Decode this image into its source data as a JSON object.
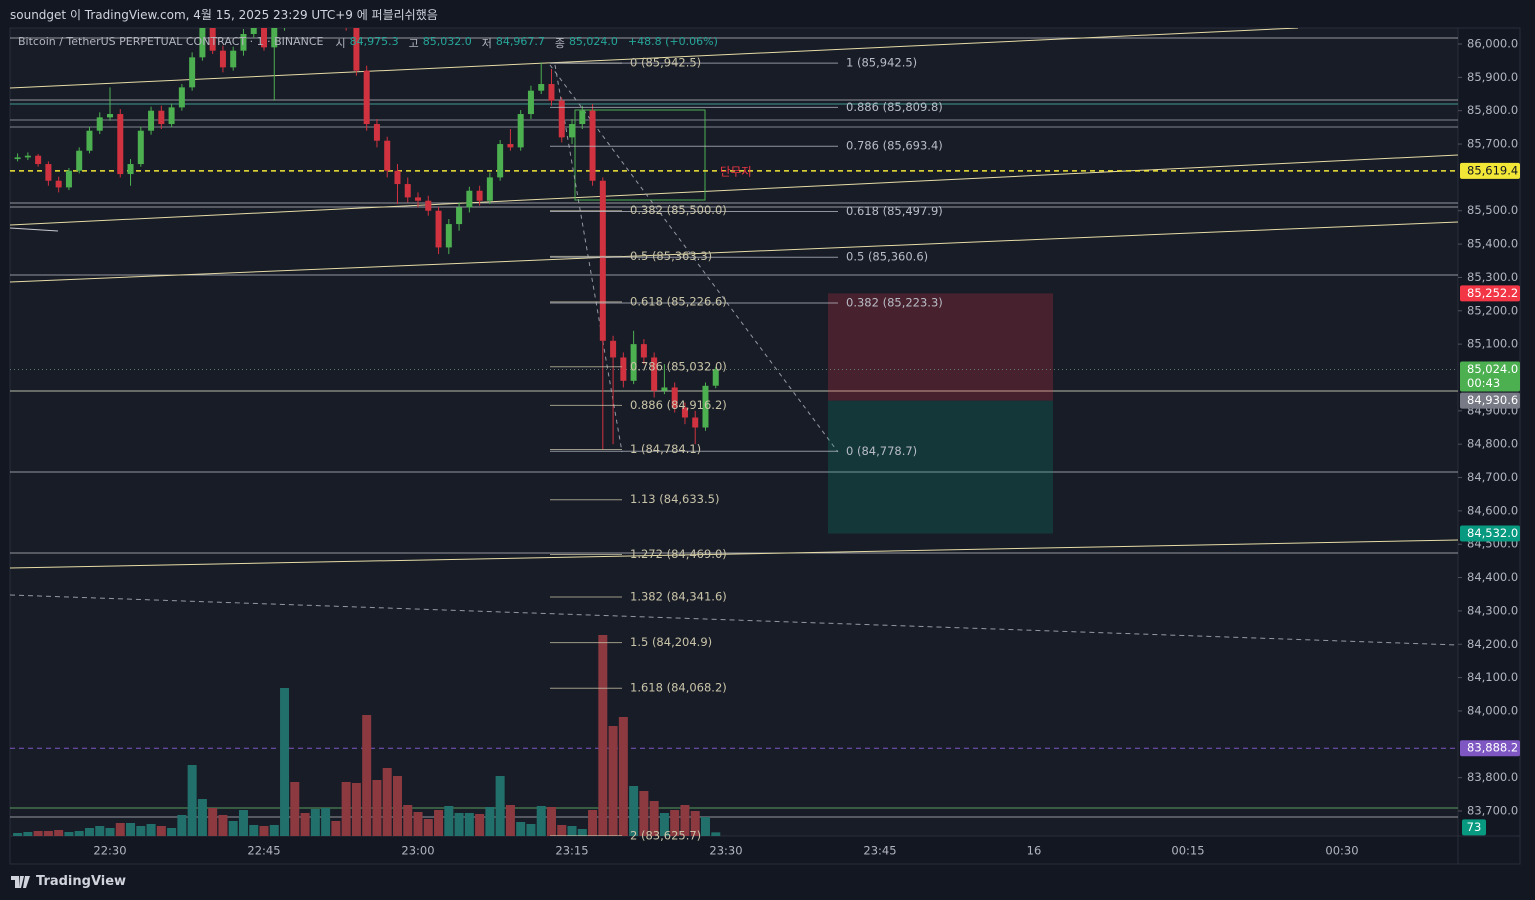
{
  "header": {
    "title": "soundget 이 TradingView.com, 4월 15, 2025 23:29 UTC+9 에 퍼블리쉬했음"
  },
  "chart_data": {
    "type": "candlestick",
    "title": "Bitcoin / TetherUS PERPETUAL CONTRACT · 1 · BINANCE",
    "legend_items": [
      {
        "prefix": "시",
        "value": 84975.3,
        "label": "84,975.3"
      },
      {
        "prefix": "고",
        "value": 85032.0,
        "label": "85,032.0"
      },
      {
        "prefix": "저",
        "value": 84967.7,
        "label": "84,967.7"
      },
      {
        "prefix": "종",
        "value": 85024.0,
        "label": "85,024.0"
      }
    ],
    "change": "+48.8 (+0.06%)",
    "up_color": "#4caf50",
    "down_color": "#d0323f",
    "volume_up_color": "#22706b",
    "volume_down_color": "#8c3a40",
    "candles": [
      [
        85655,
        85672,
        85648,
        85660
      ],
      [
        85660,
        85675,
        85652,
        85665
      ],
      [
        85665,
        85670,
        85632,
        85640
      ],
      [
        85640,
        85648,
        85575,
        85590
      ],
      [
        85590,
        85602,
        85555,
        85570
      ],
      [
        85570,
        85628,
        85562,
        85620
      ],
      [
        85620,
        85690,
        85612,
        85680
      ],
      [
        85680,
        85752,
        85672,
        85740
      ],
      [
        85740,
        85795,
        85730,
        85780
      ],
      [
        85780,
        85870,
        85770,
        85790
      ],
      [
        85790,
        85805,
        85600,
        85610
      ],
      [
        85610,
        85655,
        85575,
        85640
      ],
      [
        85640,
        85752,
        85632,
        85740
      ],
      [
        85740,
        85812,
        85728,
        85800
      ],
      [
        85800,
        85815,
        85745,
        85760
      ],
      [
        85760,
        85822,
        85750,
        85810
      ],
      [
        85810,
        85880,
        85800,
        85870
      ],
      [
        85870,
        85975,
        85860,
        85960
      ],
      [
        85960,
        86065,
        85950,
        86050
      ],
      [
        86050,
        86060,
        85970,
        85980
      ],
      [
        85980,
        85995,
        85915,
        85930
      ],
      [
        85930,
        85992,
        85920,
        85980
      ],
      [
        85980,
        86045,
        85965,
        86030
      ],
      [
        86030,
        86075,
        86020,
        86060
      ],
      [
        86060,
        86070,
        85980,
        85990
      ],
      [
        85990,
        86062,
        85830,
        86050
      ],
      [
        86050,
        86095,
        86040,
        86080
      ],
      [
        86080,
        86090,
        86060,
        86070
      ],
      [
        86070,
        86080,
        86050,
        86060
      ],
      [
        86060,
        86085,
        86050,
        86070
      ],
      [
        86070,
        86092,
        86065,
        86080
      ],
      [
        86080,
        86088,
        86050,
        86060
      ],
      [
        86060,
        86075,
        86040,
        86050
      ],
      [
        86050,
        86060,
        85905,
        85920
      ],
      [
        85920,
        85935,
        85740,
        85760
      ],
      [
        85760,
        85775,
        85690,
        85710
      ],
      [
        85710,
        85722,
        85600,
        85620
      ],
      [
        85620,
        85640,
        85520,
        85580
      ],
      [
        85580,
        85600,
        85525,
        85540
      ],
      [
        85540,
        85555,
        85510,
        85530
      ],
      [
        85530,
        85545,
        85485,
        85500
      ],
      [
        85500,
        85512,
        85370,
        85390
      ],
      [
        85390,
        85475,
        85370,
        85460
      ],
      [
        85460,
        85525,
        85440,
        85510
      ],
      [
        85510,
        85572,
        85495,
        85560
      ],
      [
        85560,
        85575,
        85515,
        85530
      ],
      [
        85530,
        85615,
        85520,
        85600
      ],
      [
        85600,
        85712,
        85590,
        85700
      ],
      [
        85700,
        85745,
        85680,
        85690
      ],
      [
        85690,
        85802,
        85680,
        85790
      ],
      [
        85790,
        85875,
        85775,
        85860
      ],
      [
        85860,
        85945,
        85850,
        85880
      ],
      [
        85880,
        85925,
        85815,
        85830
      ],
      [
        85830,
        85840,
        85705,
        85720
      ],
      [
        85720,
        85775,
        85700,
        85760
      ],
      [
        85760,
        85815,
        85745,
        85800
      ],
      [
        85800,
        85820,
        85575,
        85590
      ],
      [
        85590,
        85600,
        84784,
        85110
      ],
      [
        85110,
        85125,
        84800,
        85060
      ],
      [
        85060,
        85075,
        84970,
        84990
      ],
      [
        84990,
        85140,
        84980,
        85100
      ],
      [
        85100,
        85115,
        85040,
        85060
      ],
      [
        85060,
        85075,
        84940,
        84960
      ],
      [
        84960,
        85040,
        84950,
        84970
      ],
      [
        84970,
        84985,
        84895,
        84910
      ],
      [
        84910,
        84925,
        84860,
        84880
      ],
      [
        84880,
        84900,
        84800,
        84850
      ],
      [
        84850,
        84985,
        84840,
        84975
      ],
      [
        84975.3,
        85032.0,
        84967.7,
        85024.0
      ]
    ],
    "volumes": [
      60,
      80,
      100,
      100,
      120,
      80,
      100,
      160,
      200,
      160,
      260,
      260,
      200,
      240,
      200,
      160,
      420,
      1420,
      740,
      560,
      420,
      300,
      520,
      220,
      200,
      220,
      2960,
      1080,
      460,
      540,
      560,
      300,
      1080,
      1060,
      2420,
      1120,
      1360,
      1200,
      620,
      480,
      340,
      520,
      600,
      460,
      460,
      440,
      580,
      1200,
      620,
      280,
      240,
      600,
      580,
      220,
      200,
      140,
      520,
      4020,
      2200,
      2380,
      1000,
      900,
      700,
      460,
      520,
      620,
      500,
      380,
      73
    ],
    "volume_tag": 73,
    "ylim": [
      83625,
      86048
    ],
    "yticks": [
      {
        "value": 86000,
        "label": "86,000.0"
      },
      {
        "value": 85900,
        "label": "85,900.0"
      },
      {
        "value": 85800,
        "label": "85,800.0"
      },
      {
        "value": 85700,
        "label": "85,700.0"
      },
      {
        "value": 85500,
        "label": "85,500.0"
      },
      {
        "value": 85400,
        "label": "85,400.0"
      },
      {
        "value": 85300,
        "label": "85,300.0"
      },
      {
        "value": 85200,
        "label": "85,200.0"
      },
      {
        "value": 85100,
        "label": "85,100.0"
      },
      {
        "value": 84900,
        "label": "84,900.0"
      },
      {
        "value": 84800,
        "label": "84,800.0"
      },
      {
        "value": 84700,
        "label": "84,700.0"
      },
      {
        "value": 84600,
        "label": "84,600.0"
      },
      {
        "value": 84500,
        "label": "84,500.0"
      },
      {
        "value": 84400,
        "label": "84,400.0"
      },
      {
        "value": 84300,
        "label": "84,300.0"
      },
      {
        "value": 84200,
        "label": "84,200.0"
      },
      {
        "value": 84100,
        "label": "84,100.0"
      },
      {
        "value": 84000,
        "label": "84,000.0"
      },
      {
        "value": 83800,
        "label": "83,800.0"
      },
      {
        "value": 83700,
        "label": "83,700.0"
      }
    ],
    "xticks": [
      "22:30",
      "22:45",
      "23:00",
      "23:15",
      "23:30",
      "23:45",
      "16",
      "00:15",
      "00:30"
    ],
    "price_tags": [
      {
        "value": 85619.4,
        "label": "85,619.4",
        "color": "#f2e636",
        "text_color": "#131722",
        "line": "#f2e636"
      },
      {
        "value": 85252.2,
        "label": "85,252.2",
        "color": "#f23645",
        "text_color": "#ffffff"
      },
      {
        "value": 85024.0,
        "label": "85,024.0",
        "color": "#4caf50",
        "text_color": "#ffffff",
        "line": "#5d7a6a"
      },
      {
        "value": 84930.6,
        "label": "84,930.6",
        "color": "#787b86",
        "text_color": "#ffffff"
      },
      {
        "value": 84532.0,
        "label": "84,532.0",
        "color": "#089981",
        "text_color": "#ffffff"
      },
      {
        "value": 83888.2,
        "label": "83,888.2",
        "color": "#7e57c2",
        "text_color": "#ffffff",
        "line": "#7e57c2"
      }
    ],
    "countdown": "00:43",
    "fib_a": [
      {
        "value": 85942.5,
        "label": "0 (85,942.5)"
      },
      {
        "value": 85500.0,
        "label": "0.382 (85,500.0)"
      },
      {
        "value": 85363.3,
        "label": "0.5 (85,363.3)"
      },
      {
        "value": 85226.6,
        "label": "0.618 (85,226.6)"
      },
      {
        "value": 85032.0,
        "label": "0.786 (85,032.0)"
      },
      {
        "value": 84916.2,
        "label": "0.886 (84,916.2)"
      },
      {
        "value": 84784.1,
        "label": "1 (84,784.1)"
      },
      {
        "value": 84633.5,
        "label": "1.13 (84,633.5)"
      },
      {
        "value": 84469.0,
        "label": "1.272 (84,469.0)"
      },
      {
        "value": 84341.6,
        "label": "1.382 (84,341.6)"
      },
      {
        "value": 84204.9,
        "label": "1.5 (84,204.9)"
      },
      {
        "value": 84068.2,
        "label": "1.618 (84,068.2)"
      },
      {
        "value": 83625.7,
        "label": "2 (83,625.7)"
      }
    ],
    "fib_b": [
      {
        "value": 85942.5,
        "label": "1 (85,942.5)"
      },
      {
        "value": 85809.8,
        "label": "0.886 (85,809.8)"
      },
      {
        "value": 85693.4,
        "label": "0.786 (85,693.4)"
      },
      {
        "value": 85497.9,
        "label": "0.618 (85,497.9)"
      },
      {
        "value": 85360.6,
        "label": "0.5 (85,360.6)"
      },
      {
        "value": 85223.3,
        "label": "0.382 (85,223.3)"
      },
      {
        "value": 84778.7,
        "label": "0 (84,778.7)"
      }
    ],
    "annotation": "단무지"
  },
  "footer": {
    "brand": "TradingView"
  }
}
